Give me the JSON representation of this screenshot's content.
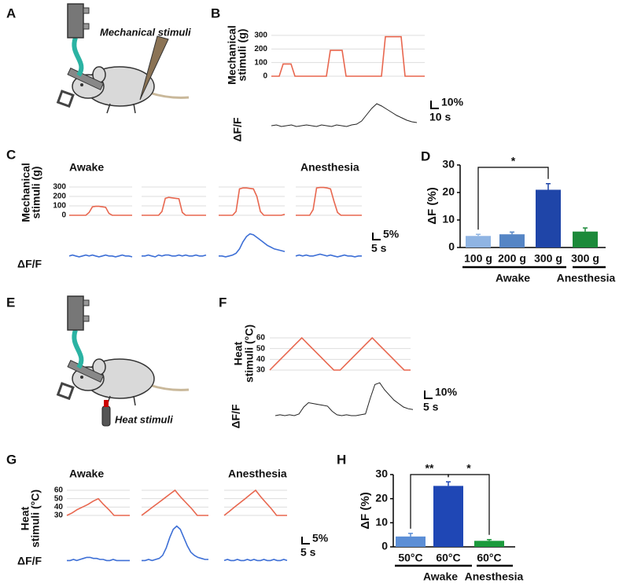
{
  "illustrations": [
    {
      "panel": "A",
      "caption": "Mechanical stimuli"
    },
    {
      "panel": "E",
      "caption": "Heat stimuli"
    }
  ],
  "chart_data": [
    {
      "type": "line",
      "panel": "B",
      "ylabel": [
        "Mechanical",
        "stimuli (g)"
      ],
      "ylim": [
        0,
        300
      ],
      "yticks": [
        0,
        100,
        200,
        300
      ],
      "grid": true,
      "color": "#e8674f",
      "values": [
        0,
        0,
        0,
        90,
        90,
        90,
        0,
        0,
        0,
        0,
        0,
        0,
        0,
        0,
        0,
        190,
        190,
        190,
        190,
        0,
        0,
        0,
        0,
        0,
        0,
        0,
        0,
        0,
        0,
        290,
        290,
        290,
        290,
        290,
        0,
        0,
        0,
        0,
        0,
        0
      ]
    },
    {
      "type": "line",
      "ylabel": "ΔF/F",
      "ylim": [
        -10,
        40
      ],
      "color": "#222222",
      "scale_labels": [
        "10%",
        "10 s"
      ],
      "values": [
        0,
        1,
        -1,
        0,
        1,
        -1,
        0,
        1,
        0,
        -1,
        1,
        0,
        -1,
        1,
        0,
        -1,
        1,
        2,
        6,
        14,
        22,
        28,
        25,
        21,
        17,
        13,
        10,
        7,
        5,
        4
      ]
    },
    {
      "type": "line",
      "panel": "C",
      "conditions": [
        "Awake",
        "Anesthesia"
      ],
      "ylabel": [
        "Mechanical",
        "stimuli (g)"
      ],
      "ylim": [
        0,
        300
      ],
      "yticks": [
        0,
        100,
        200,
        300
      ],
      "grid": true,
      "color": "#e8674f",
      "series": [
        {
          "values": [
            0,
            0,
            0,
            0,
            0,
            0,
            30,
            90,
            95,
            95,
            90,
            85,
            20,
            0,
            0,
            0,
            0,
            0,
            0,
            0
          ]
        },
        {
          "values": [
            0,
            0,
            0,
            0,
            0,
            0,
            40,
            180,
            190,
            185,
            180,
            175,
            30,
            0,
            0,
            0,
            0,
            0,
            0,
            0
          ]
        },
        {
          "values": [
            0,
            0,
            0,
            0,
            0,
            40,
            280,
            290,
            290,
            285,
            280,
            200,
            40,
            0,
            0,
            0,
            0,
            0,
            0,
            10
          ]
        },
        {
          "values": [
            0,
            0,
            0,
            0,
            0,
            60,
            290,
            295,
            295,
            290,
            280,
            150,
            30,
            0,
            0,
            0,
            0,
            0,
            0,
            0
          ]
        }
      ]
    },
    {
      "type": "line",
      "ylabel": "ΔF/F",
      "ylim": [
        -10,
        30
      ],
      "color": "#3d6fd6",
      "scale_labels": [
        "5%",
        "5 s"
      ],
      "series": [
        {
          "values": [
            0,
            1,
            0,
            -1,
            0,
            1,
            0,
            1,
            0,
            -1,
            0,
            1,
            0,
            0,
            -1,
            0,
            1,
            0,
            0,
            -1
          ]
        },
        {
          "values": [
            0,
            0,
            1,
            0,
            -1,
            1,
            0,
            1,
            1,
            0,
            0,
            1,
            0,
            1,
            0,
            0,
            1,
            0,
            0,
            1
          ]
        },
        {
          "values": [
            0,
            0,
            -1,
            0,
            1,
            3,
            8,
            16,
            22,
            25,
            24,
            21,
            18,
            15,
            12,
            10,
            8,
            7,
            6,
            5
          ]
        },
        {
          "values": [
            0,
            1,
            0,
            1,
            0,
            0,
            1,
            2,
            1,
            0,
            1,
            0,
            -1,
            0,
            1,
            0,
            0,
            -1,
            0,
            0
          ]
        }
      ]
    },
    {
      "type": "bar",
      "panel": "D",
      "ylabel": "ΔF (%)",
      "categories": [
        "100 g",
        "200 g",
        "300 g",
        "300 g"
      ],
      "values": [
        4.2,
        4.8,
        21,
        5.8
      ],
      "errors": [
        0.6,
        0.8,
        2.2,
        1.3
      ],
      "colors": [
        "#8fb4e3",
        "#5585c5",
        "#1f45a8",
        "#1c8a3a"
      ],
      "ylim": [
        0,
        30
      ],
      "yticks": [
        0,
        10,
        20,
        30
      ],
      "significance": [
        "*"
      ],
      "group_labels": [
        "Awake",
        "Anesthesia"
      ]
    },
    {
      "type": "line",
      "panel": "F",
      "ylabel": [
        "Heat",
        "stimuli (°C)"
      ],
      "ylim": [
        30,
        60
      ],
      "yticks": [
        30,
        40,
        50,
        60
      ],
      "grid": true,
      "color": "#e8674f",
      "values": [
        30,
        36,
        42,
        48,
        54,
        60,
        54,
        48,
        42,
        36,
        30,
        30,
        36,
        42,
        48,
        54,
        60,
        54,
        48,
        42,
        36,
        30,
        30
      ]
    },
    {
      "type": "line",
      "ylabel": "ΔF/F",
      "ylim": [
        -10,
        40
      ],
      "color": "#222222",
      "scale_labels": [
        "10%",
        "5 s"
      ],
      "values": [
        0,
        1,
        0,
        1,
        0,
        2,
        10,
        15,
        14,
        13,
        12,
        11,
        5,
        1,
        0,
        1,
        0,
        0,
        1,
        2,
        20,
        36,
        38,
        30,
        24,
        18,
        14,
        10,
        8,
        7
      ]
    },
    {
      "type": "line",
      "panel": "G",
      "conditions": [
        "Awake",
        "Anesthesia"
      ],
      "ylabel": [
        "Heat",
        "stimuli (°C)"
      ],
      "ylim": [
        30,
        60
      ],
      "yticks": [
        30,
        40,
        50,
        60
      ],
      "grid": true,
      "color": "#e8674f",
      "series": [
        {
          "values": [
            30,
            33,
            37,
            40,
            43,
            47,
            50,
            43,
            37,
            30,
            30,
            30,
            30
          ]
        },
        {
          "values": [
            30,
            35,
            40,
            45,
            50,
            55,
            60,
            52,
            45,
            38,
            30,
            30,
            30
          ]
        },
        {
          "values": [
            30,
            35,
            40,
            45,
            50,
            55,
            60,
            52,
            45,
            38,
            30,
            30,
            30
          ]
        }
      ]
    },
    {
      "type": "line",
      "ylabel": "ΔF/F",
      "ylim": [
        -5,
        35
      ],
      "color": "#3d6fd6",
      "scale_labels": [
        "5%",
        "5 s"
      ],
      "series": [
        {
          "values": [
            0,
            0,
            1,
            0,
            1,
            2,
            3,
            3,
            2,
            2,
            1,
            1,
            0,
            0,
            1,
            0,
            0,
            0,
            0,
            0
          ]
        },
        {
          "values": [
            0,
            0,
            1,
            0,
            1,
            2,
            5,
            12,
            22,
            30,
            33,
            30,
            22,
            14,
            8,
            5,
            3,
            2,
            1,
            1
          ]
        },
        {
          "values": [
            0,
            1,
            0,
            0,
            1,
            0,
            0,
            1,
            0,
            1,
            0,
            0,
            1,
            0,
            0,
            1,
            0,
            0,
            1,
            0
          ]
        }
      ]
    },
    {
      "type": "bar",
      "panel": "H",
      "ylabel": "ΔF (%)",
      "categories": [
        "50°C",
        "60°C",
        "60°C"
      ],
      "values": [
        4.3,
        25.3,
        2.5
      ],
      "errors": [
        1.3,
        1.7,
        0.5
      ],
      "colors": [
        "#5b8ed6",
        "#1f47b5",
        "#1b9a3c"
      ],
      "ylim": [
        0,
        30
      ],
      "yticks": [
        0,
        10,
        20,
        30
      ],
      "significance": [
        "**",
        "*"
      ],
      "group_labels": [
        "Awake",
        "Anesthesia"
      ]
    }
  ]
}
